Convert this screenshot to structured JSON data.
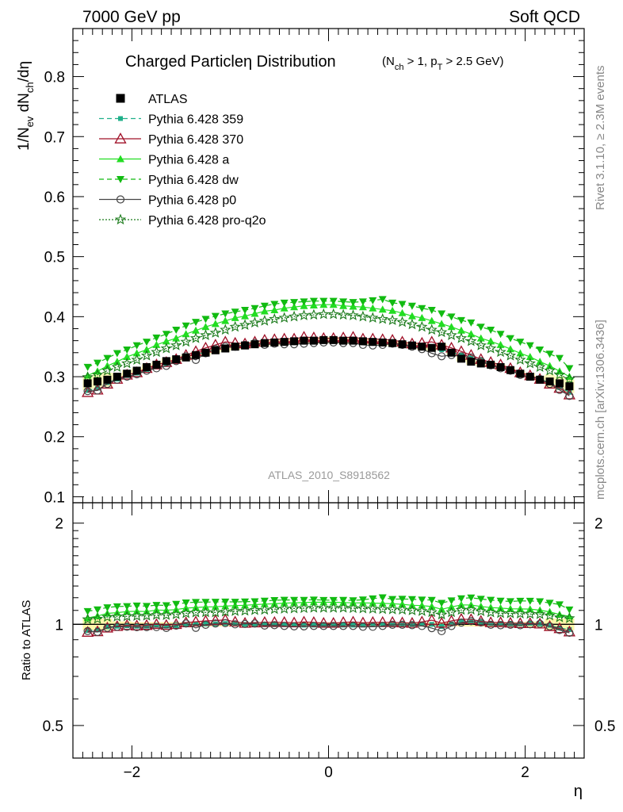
{
  "header": {
    "left": "7000 GeV pp",
    "right": "Soft QCD"
  },
  "side_labels": {
    "rivet": "Rivet 3.1.10, ≥ 2.3M events",
    "mcplots": "mcplots.cern.ch [arXiv:1306.3436]"
  },
  "chart_data": [
    {
      "type": "scatter",
      "title": "Charged Particleη Distribution",
      "title_cuts": {
        "n_main": "(N",
        "n_sub": "ch",
        "n_rest": " > 1, p",
        "p_sub": "T",
        "p_rest": " > 2.5 GeV)"
      },
      "ylabel": {
        "main": "1/N",
        "ev_sub": "ev",
        "mid": " dN",
        "ch_sub": "ch",
        "rest": "/dη"
      },
      "xlabel": "η",
      "analysis_label": "ATLAS_2010_S8918562",
      "xlim": [
        -2.6,
        2.6
      ],
      "ylim": [
        0.09,
        0.88
      ],
      "yticks": [
        "0.1",
        "0.2",
        "0.3",
        "0.4",
        "0.5",
        "0.6",
        "0.7",
        "0.8"
      ],
      "ytick_values": [
        0.1,
        0.2,
        0.3,
        0.4,
        0.5,
        0.6,
        0.7,
        0.8
      ],
      "legend_position": "top-left",
      "x": [
        -2.45,
        -2.35,
        -2.25,
        -2.15,
        -2.05,
        -1.95,
        -1.85,
        -1.75,
        -1.65,
        -1.55,
        -1.45,
        -1.35,
        -1.25,
        -1.15,
        -1.05,
        -0.95,
        -0.85,
        -0.75,
        -0.65,
        -0.55,
        -0.45,
        -0.35,
        -0.25,
        -0.15,
        -0.05,
        0.05,
        0.15,
        0.25,
        0.35,
        0.45,
        0.55,
        0.65,
        0.75,
        0.85,
        0.95,
        1.05,
        1.15,
        1.25,
        1.35,
        1.45,
        1.55,
        1.65,
        1.75,
        1.85,
        1.95,
        2.05,
        2.15,
        2.25,
        2.35,
        2.45
      ],
      "series": [
        {
          "name": "ATLAS",
          "color": "#000000",
          "marker": "square",
          "line": "none",
          "values": [
            0.289,
            0.292,
            0.295,
            0.3,
            0.305,
            0.31,
            0.316,
            0.32,
            0.326,
            0.329,
            0.332,
            0.336,
            0.34,
            0.344,
            0.347,
            0.35,
            0.352,
            0.354,
            0.356,
            0.357,
            0.358,
            0.359,
            0.36,
            0.36,
            0.361,
            0.361,
            0.36,
            0.36,
            0.359,
            0.358,
            0.357,
            0.356,
            0.354,
            0.352,
            0.35,
            0.348,
            0.35,
            0.34,
            0.33,
            0.325,
            0.322,
            0.32,
            0.316,
            0.311,
            0.305,
            0.3,
            0.295,
            0.292,
            0.289,
            0.284
          ],
          "band": [
            0.08,
            0.08,
            0.08,
            0.04,
            0.04,
            0.03,
            0.03,
            0.03,
            0.03,
            0.03,
            0.03,
            0.03,
            0.03,
            0.03,
            0.03,
            0.03,
            0.03,
            0.03,
            0.03,
            0.03,
            0.03,
            0.03,
            0.03,
            0.03,
            0.03,
            0.03,
            0.03,
            0.03,
            0.03,
            0.03,
            0.03,
            0.03,
            0.03,
            0.03,
            0.03,
            0.03,
            0.03,
            0.03,
            0.03,
            0.03,
            0.03,
            0.03,
            0.03,
            0.03,
            0.03,
            0.04,
            0.04,
            0.08,
            0.08,
            0.08
          ]
        },
        {
          "name": "Pythia 6.428 359",
          "color": "#20b08a",
          "marker": "small-square",
          "line": "dashed",
          "values": [
            0.277,
            0.281,
            0.29,
            0.296,
            0.302,
            0.306,
            0.312,
            0.318,
            0.322,
            0.326,
            0.332,
            0.337,
            0.341,
            0.345,
            0.349,
            0.351,
            0.352,
            0.354,
            0.355,
            0.356,
            0.357,
            0.358,
            0.358,
            0.358,
            0.359,
            0.359,
            0.358,
            0.358,
            0.357,
            0.357,
            0.356,
            0.355,
            0.354,
            0.352,
            0.351,
            0.348,
            0.345,
            0.341,
            0.336,
            0.332,
            0.327,
            0.322,
            0.318,
            0.312,
            0.306,
            0.302,
            0.296,
            0.29,
            0.282,
            0.274
          ]
        },
        {
          "name": "Pythia 6.428 370",
          "color": "#a01028",
          "marker": "open-triangle",
          "line": "solid",
          "values": [
            0.274,
            0.278,
            0.288,
            0.296,
            0.303,
            0.307,
            0.314,
            0.32,
            0.324,
            0.329,
            0.336,
            0.342,
            0.348,
            0.353,
            0.358,
            0.356,
            0.355,
            0.358,
            0.361,
            0.362,
            0.363,
            0.363,
            0.366,
            0.365,
            0.364,
            0.364,
            0.365,
            0.366,
            0.363,
            0.363,
            0.362,
            0.361,
            0.358,
            0.355,
            0.356,
            0.358,
            0.353,
            0.348,
            0.342,
            0.336,
            0.329,
            0.324,
            0.32,
            0.314,
            0.307,
            0.302,
            0.296,
            0.288,
            0.281,
            0.27
          ]
        },
        {
          "name": "Pythia 6.428 a",
          "color": "#22dd22",
          "marker": "triangle-up",
          "line": "solid",
          "values": [
            0.302,
            0.309,
            0.318,
            0.325,
            0.333,
            0.339,
            0.345,
            0.353,
            0.359,
            0.364,
            0.371,
            0.377,
            0.383,
            0.388,
            0.393,
            0.398,
            0.401,
            0.405,
            0.409,
            0.411,
            0.414,
            0.416,
            0.418,
            0.419,
            0.42,
            0.42,
            0.418,
            0.417,
            0.416,
            0.414,
            0.412,
            0.41,
            0.406,
            0.401,
            0.398,
            0.393,
            0.388,
            0.383,
            0.377,
            0.371,
            0.364,
            0.359,
            0.353,
            0.346,
            0.339,
            0.333,
            0.325,
            0.318,
            0.309,
            0.3
          ]
        },
        {
          "name": "Pythia 6.428 dw",
          "color": "#11bb11",
          "marker": "triangle-down",
          "line": "dashed",
          "values": [
            0.316,
            0.323,
            0.331,
            0.339,
            0.345,
            0.352,
            0.358,
            0.365,
            0.371,
            0.378,
            0.385,
            0.391,
            0.396,
            0.401,
            0.405,
            0.408,
            0.411,
            0.414,
            0.418,
            0.421,
            0.423,
            0.424,
            0.425,
            0.426,
            0.426,
            0.426,
            0.425,
            0.424,
            0.425,
            0.427,
            0.429,
            0.423,
            0.421,
            0.418,
            0.414,
            0.411,
            0.405,
            0.4,
            0.394,
            0.39,
            0.383,
            0.378,
            0.371,
            0.364,
            0.358,
            0.352,
            0.345,
            0.338,
            0.331,
            0.314
          ]
        },
        {
          "name": "Pythia 6.428 p0",
          "color": "#444444",
          "marker": "open-circle",
          "line": "solid",
          "values": [
            0.276,
            0.277,
            0.288,
            0.295,
            0.3,
            0.304,
            0.31,
            0.314,
            0.318,
            0.326,
            0.334,
            0.328,
            0.339,
            0.346,
            0.35,
            0.35,
            0.353,
            0.356,
            0.353,
            0.355,
            0.354,
            0.354,
            0.355,
            0.356,
            0.357,
            0.357,
            0.356,
            0.356,
            0.353,
            0.352,
            0.353,
            0.355,
            0.353,
            0.35,
            0.346,
            0.339,
            0.334,
            0.336,
            0.334,
            0.332,
            0.326,
            0.319,
            0.314,
            0.31,
            0.303,
            0.3,
            0.296,
            0.288,
            0.278,
            0.268
          ]
        },
        {
          "name": "Pythia 6.428 pro-q2o",
          "color": "#1a7a1a",
          "marker": "open-star",
          "line": "dotted",
          "values": [
            0.299,
            0.303,
            0.31,
            0.316,
            0.322,
            0.328,
            0.335,
            0.341,
            0.347,
            0.352,
            0.358,
            0.364,
            0.369,
            0.373,
            0.378,
            0.383,
            0.386,
            0.39,
            0.393,
            0.396,
            0.398,
            0.4,
            0.402,
            0.403,
            0.404,
            0.404,
            0.403,
            0.402,
            0.4,
            0.398,
            0.396,
            0.394,
            0.391,
            0.387,
            0.383,
            0.378,
            0.374,
            0.369,
            0.364,
            0.359,
            0.352,
            0.347,
            0.341,
            0.335,
            0.328,
            0.322,
            0.316,
            0.31,
            0.303,
            0.296
          ]
        }
      ]
    },
    {
      "type": "scatter",
      "ylabel": "Ratio to ATLAS",
      "xlabel": "η",
      "xlim": [
        -2.6,
        2.6
      ],
      "ylim": [
        0.4,
        2.3
      ],
      "yticks": [
        "0.5",
        "1",
        "2"
      ],
      "ytick_values": [
        0.5,
        1,
        2
      ],
      "xticks": [
        "−2",
        "0",
        "2"
      ],
      "xtick_values": [
        -2,
        0,
        2
      ],
      "reference": 1.0
    }
  ]
}
